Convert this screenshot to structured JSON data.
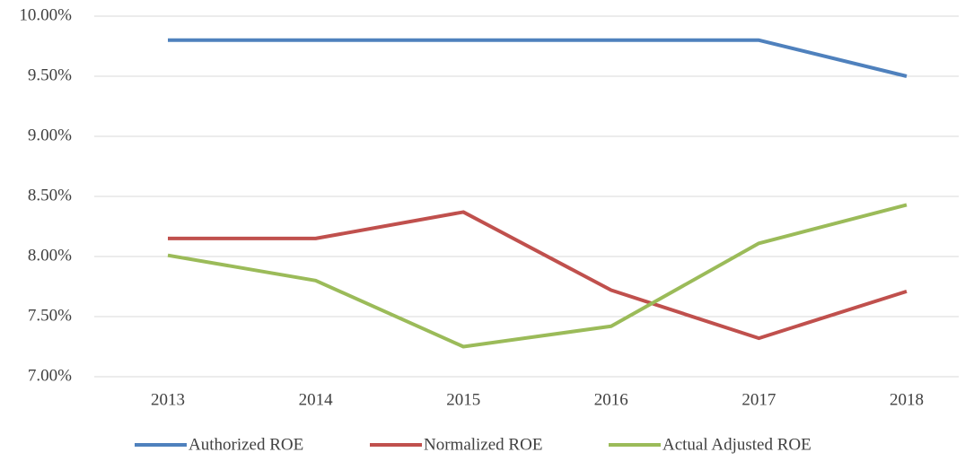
{
  "chart_data": {
    "type": "line",
    "categories": [
      "2013",
      "2014",
      "2015",
      "2016",
      "2017",
      "2018"
    ],
    "series": [
      {
        "name": "Authorized ROE",
        "color": "#4f81bd",
        "values": [
          9.8,
          9.8,
          9.8,
          9.8,
          9.8,
          9.5
        ]
      },
      {
        "name": "Normalized ROE",
        "color": "#c0504d",
        "values": [
          8.15,
          8.15,
          8.37,
          7.72,
          7.32,
          7.71
        ]
      },
      {
        "name": "Actual Adjusted ROE",
        "color": "#9bbb59",
        "values": [
          8.01,
          7.8,
          7.25,
          7.42,
          8.11,
          8.43
        ]
      }
    ],
    "ylim": [
      7,
      10
    ],
    "yticks": [
      {
        "value": 7,
        "label": "7.00%"
      },
      {
        "value": 7.5,
        "label": "7.50%"
      },
      {
        "value": 8,
        "label": "8.00%"
      },
      {
        "value": 8.5,
        "label": "8.50%"
      },
      {
        "value": 9,
        "label": "9.00%"
      },
      {
        "value": 9.5,
        "label": "9.50%"
      },
      {
        "value": 10,
        "label": "10.00%"
      }
    ],
    "grid": true,
    "legend": "bottom"
  }
}
